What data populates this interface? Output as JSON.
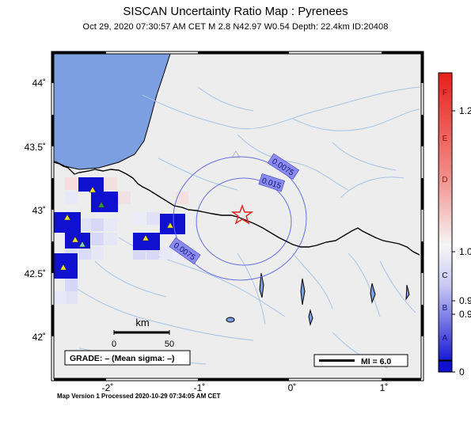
{
  "map": {
    "title": "SISCAN Uncertainty Ratio Map : Pyrenees",
    "subtitle": "Oct 29, 2020 07:30:57 AM CET   M 2.8   N42.97 W0.54   Depth: 22.4km   ID:20408",
    "footer": "Map Version 1 Processed 2020-10-29 07:34:05 AM CET",
    "lat_ticks": [
      "44˚",
      "43.5˚",
      "43˚",
      "42.5˚",
      "42˚"
    ],
    "lon_ticks": [
      "-2˚",
      "-1˚",
      "0˚",
      "1˚"
    ],
    "contour_labels": [
      "0.0075",
      "0.015",
      "0.0075"
    ],
    "scalebar": {
      "unit": "km",
      "ticks": [
        "0",
        "50"
      ]
    },
    "grade_box": "GRADE: – (Mean sigma: –)",
    "mi_legend": "MI = 6.0",
    "epicenter": {
      "lat": 42.97,
      "lon": -0.54,
      "symbol": "star"
    }
  },
  "colorbar": {
    "letters": [
      "F",
      "E",
      "D",
      "C",
      "B",
      "A"
    ],
    "values": [
      "1.2",
      "1.0",
      "0.9",
      "0.9",
      "0"
    ],
    "colors": {
      "top": "#e8201c",
      "mid": "#f4f4f4",
      "bottom": "#1010d0"
    }
  },
  "colors": {
    "water": "#7b9fe0",
    "land": "#ededed",
    "border": "#000000",
    "rivers": "#a9c4e4",
    "contour": "#6a70e0",
    "star": "#e0251d",
    "station_yellow": "#f2e22a",
    "station_green": "#2e9a3b",
    "station_mint": "#7fd6a9"
  }
}
